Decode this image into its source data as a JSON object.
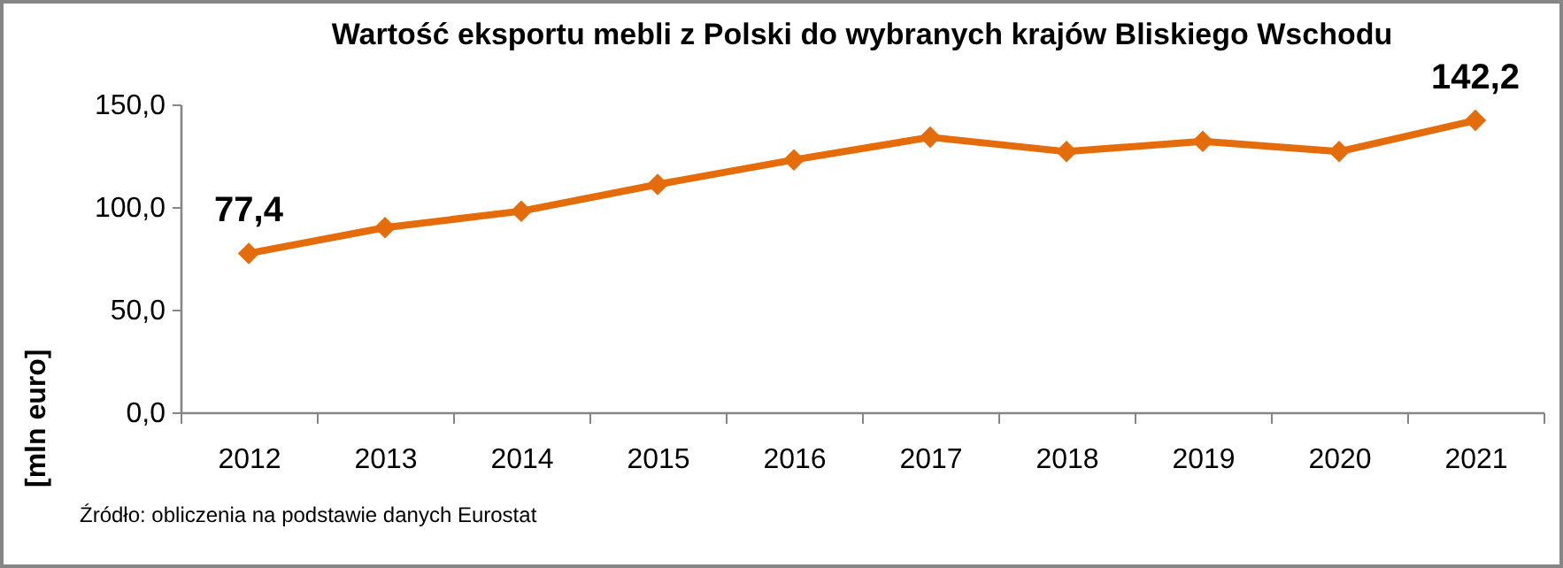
{
  "chart_data": {
    "type": "line",
    "title": "Wartość eksportu mebli z Polski do wybranych krajów Bliskiego Wschodu",
    "ylabel": "[mln euro]",
    "annotations": [
      "Źródło: obliczenia na podstawie danych Eurostat"
    ],
    "categories": [
      "2012",
      "2013",
      "2014",
      "2015",
      "2016",
      "2017",
      "2018",
      "2019",
      "2020",
      "2021"
    ],
    "values": [
      77.4,
      90,
      98,
      111,
      123,
      134,
      127,
      132,
      127,
      142.2
    ],
    "value_labels": [
      "77,4",
      null,
      null,
      null,
      null,
      null,
      null,
      null,
      null,
      "142,2"
    ],
    "color": "#e46c0a",
    "ylim": [
      0,
      150
    ],
    "yticks": [
      {
        "value": 0,
        "label": "0,0"
      },
      {
        "value": 50,
        "label": "50,0"
      },
      {
        "value": 100,
        "label": "100,0"
      },
      {
        "value": 150,
        "label": "150,0"
      }
    ],
    "marker": "diamond",
    "line_style": "solid"
  }
}
